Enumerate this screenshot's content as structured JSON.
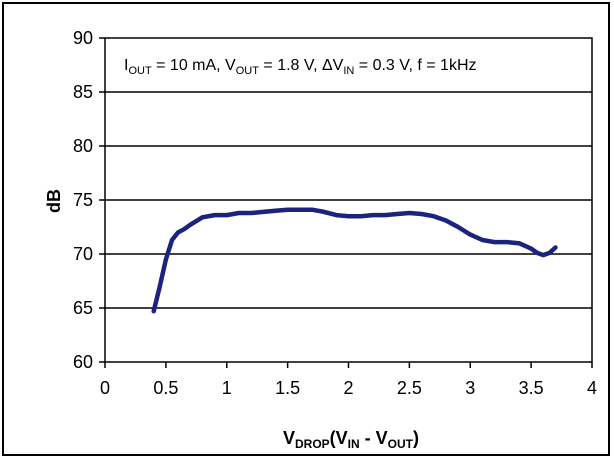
{
  "chart_data": {
    "type": "line",
    "title": "",
    "xlabel": {
      "main": "V",
      "main_sub": "DROP",
      "paren_open": "(V",
      "sub1": "IN",
      "mid": " - V",
      "sub2": "OUT",
      "paren_close": ")"
    },
    "ylabel": "dB",
    "xlim": [
      0,
      4
    ],
    "ylim": [
      60,
      90
    ],
    "x_ticks": [
      "0",
      "0.5",
      "1",
      "1.5",
      "2",
      "2.5",
      "3",
      "3.5",
      "4"
    ],
    "y_ticks": [
      "60",
      "65",
      "70",
      "75",
      "80",
      "85",
      "90"
    ],
    "grid": {
      "horizontal": true,
      "vertical": false
    },
    "annotation": {
      "part1": "I",
      "sub1": "OUT",
      "part2": " = 10 mA, V",
      "sub2": "OUT",
      "part3": " = 1.8 V, ΔV",
      "sub3": "IN",
      "part4": " = 0.3 V, f = 1kHz"
    },
    "line_color": "#1a237e",
    "series": [
      {
        "x": [
          0.4,
          0.45,
          0.5,
          0.55,
          0.6,
          0.65,
          0.7,
          0.8,
          0.9,
          1.0,
          1.1,
          1.2,
          1.3,
          1.4,
          1.5,
          1.6,
          1.7,
          1.8,
          1.9,
          2.0,
          2.1,
          2.2,
          2.3,
          2.4,
          2.5,
          2.6,
          2.7,
          2.8,
          2.9,
          3.0,
          3.1,
          3.2,
          3.3,
          3.4,
          3.5,
          3.55,
          3.6,
          3.65,
          3.7
        ],
        "values": [
          64.7,
          67.0,
          69.5,
          71.3,
          72.0,
          72.3,
          72.7,
          73.4,
          73.6,
          73.6,
          73.8,
          73.8,
          73.9,
          74.0,
          74.1,
          74.1,
          74.1,
          73.9,
          73.6,
          73.5,
          73.5,
          73.6,
          73.6,
          73.7,
          73.8,
          73.7,
          73.5,
          73.1,
          72.5,
          71.8,
          71.3,
          71.1,
          71.1,
          71.0,
          70.5,
          70.1,
          69.9,
          70.1,
          70.6
        ]
      }
    ]
  }
}
